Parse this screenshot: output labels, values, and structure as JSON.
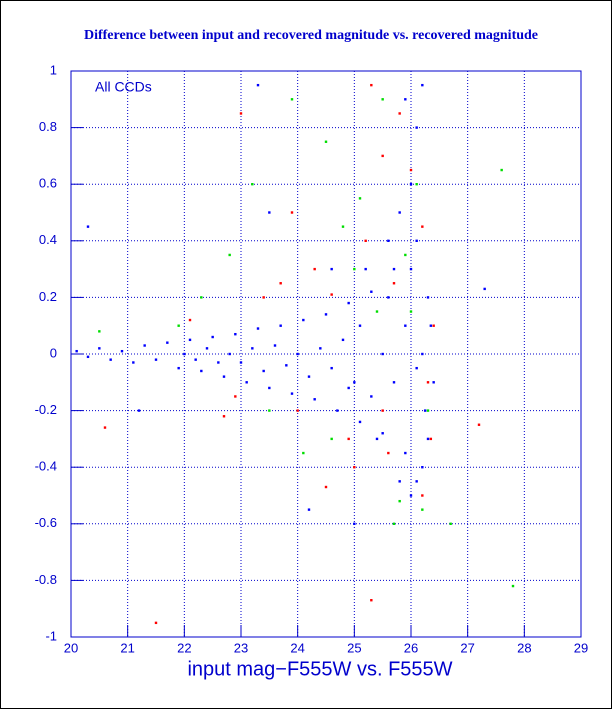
{
  "chart_data": {
    "type": "scatter",
    "title": "Difference between input and recovered magnitude vs. recovered magnitude",
    "annotation": "All CCDs",
    "x_label": "input mag−F555W vs. F555W",
    "xlim": [
      20,
      29
    ],
    "xticks": [
      20,
      21,
      22,
      23,
      24,
      25,
      26,
      27,
      28,
      29
    ],
    "ylim": [
      -1,
      1
    ],
    "yticks": [
      -1,
      -0.8,
      -0.6,
      -0.4,
      -0.2,
      0,
      0.2,
      0.4,
      0.6,
      0.8,
      1
    ],
    "grid": true,
    "series": [
      {
        "color": "#0000ff",
        "x": [
          20.1,
          20.3,
          20.5,
          20.7,
          20.9,
          21.1,
          21.3,
          21.5,
          21.7,
          21.9,
          22.1,
          22.3,
          22.5,
          22.7,
          22.9,
          23.1,
          23.3,
          23.5,
          23.7,
          23.9,
          24.1,
          24.3,
          24.5,
          24.7,
          24.9,
          25.1,
          25.3,
          25.5,
          25.7,
          25.9,
          26.1,
          26.2,
          26.3,
          26.25,
          26,
          26.1,
          25.8,
          25.6,
          25.4,
          25.2,
          25,
          24.8,
          24.6,
          24.4,
          24.2,
          24,
          23.8,
          23.6,
          23.4,
          23.2,
          23,
          22.8,
          22.6,
          22.4,
          22.2,
          22,
          25.5,
          25.7,
          25.9,
          26.1,
          26.2,
          25.3,
          25.1,
          24.9,
          26,
          25.8,
          26.1,
          26.3,
          26.0,
          25.6,
          24.6,
          23.3,
          23.5,
          20.3,
          25.0,
          26.2,
          25.9,
          24.2,
          27.3,
          21.2,
          26.4,
          26.35
        ],
        "y": [
          0.01,
          -0.01,
          0.02,
          -0.02,
          0.01,
          -0.03,
          0.03,
          -0.02,
          0.04,
          -0.05,
          0.05,
          -0.06,
          0.06,
          -0.08,
          0.07,
          -0.1,
          0.09,
          -0.12,
          0.1,
          -0.14,
          0.12,
          -0.16,
          0.14,
          -0.2,
          0.18,
          -0.24,
          0.22,
          -0.28,
          0.3,
          -0.35,
          0.4,
          -0.4,
          0.2,
          -0.2,
          0.6,
          0.8,
          0.5,
          0.4,
          -0.3,
          0.3,
          -0.1,
          0.05,
          -0.05,
          0.02,
          -0.08,
          0,
          -0.04,
          0.03,
          -0.06,
          0.02,
          -0.03,
          0,
          -0.03,
          0.02,
          -0.02,
          0,
          0,
          -0.1,
          0.1,
          -0.05,
          0,
          -0.15,
          0.1,
          -0.12,
          -0.5,
          -0.45,
          -0.45,
          -0.3,
          0.3,
          0.2,
          0.3,
          0.95,
          0.5,
          0.45,
          -0.6,
          0.95,
          0.9,
          -0.55,
          0.23,
          -0.2,
          -0.1,
          0.1
        ]
      },
      {
        "color": "#ff0000",
        "x": [
          20.6,
          22.7,
          24.5,
          25,
          25.3,
          23.9,
          24.6,
          25.5,
          25.8,
          26.0,
          26.3,
          26.35,
          26.4,
          25.2,
          24.9,
          22.1,
          23.4,
          23.0,
          25.3,
          26.2,
          25.5,
          24.0,
          21.5,
          27.2,
          26.2,
          25.7,
          24.3,
          23.7,
          25.6,
          22.9
        ],
        "y": [
          -0.26,
          -0.22,
          -0.47,
          -0.4,
          -0.87,
          0.5,
          0.21,
          0.7,
          0.85,
          0.65,
          -0.1,
          -0.3,
          0.1,
          0.4,
          -0.3,
          0.12,
          0.2,
          0.85,
          0.95,
          -0.5,
          -0.2,
          -0.2,
          -0.95,
          -0.25,
          0.45,
          0.25,
          0.3,
          0.25,
          -0.35,
          -0.15
        ]
      },
      {
        "color": "#00dd00",
        "x": [
          23.9,
          23.2,
          24.5,
          25.1,
          25.5,
          26.3,
          26.2,
          25.8,
          24.6,
          23.5,
          22.3,
          21.9,
          20.5,
          25.9,
          26.1,
          25.4,
          24.8,
          27.6,
          27.8,
          26.7,
          22.8,
          24.1,
          25.7,
          26.0,
          25.0
        ],
        "y": [
          0.9,
          0.6,
          0.75,
          0.55,
          0.9,
          -0.2,
          -0.55,
          -0.52,
          -0.3,
          -0.2,
          0.2,
          0.1,
          0.08,
          0.35,
          0.6,
          0.15,
          0.45,
          0.65,
          -0.82,
          -0.6,
          0.35,
          -0.35,
          -0.6,
          0.15,
          0.3
        ]
      }
    ]
  }
}
